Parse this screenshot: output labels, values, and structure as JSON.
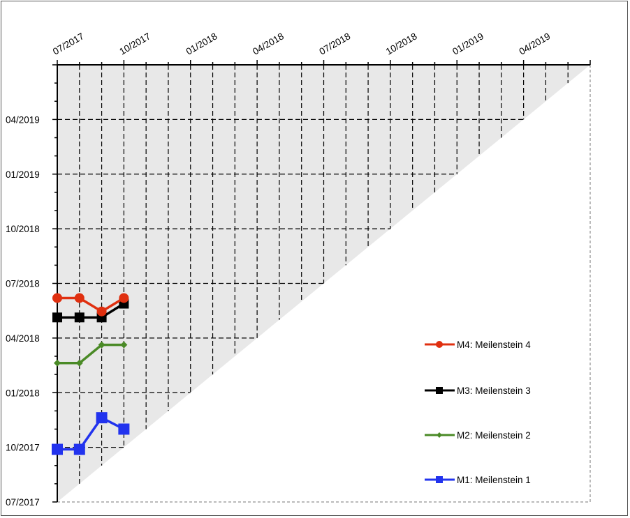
{
  "chart_data": {
    "type": "line",
    "title": "",
    "x_axis": {
      "ticks": [
        "07/2017",
        "10/2017",
        "01/2018",
        "04/2018",
        "07/2018",
        "10/2018",
        "01/2019",
        "04/2019"
      ],
      "range": [
        "2017-07",
        "2019-07"
      ],
      "position": "top"
    },
    "y_axis": {
      "ticks": [
        "07/2017",
        "10/2017",
        "01/2018",
        "04/2018",
        "07/2018",
        "10/2018",
        "01/2019",
        "04/2019"
      ],
      "range": [
        "2017-07",
        "2019-07"
      ]
    },
    "grid": true,
    "legend_position": "right",
    "series": [
      {
        "name": "M4: Meilenstein 4",
        "color": "#e03010",
        "marker": "circle",
        "points": [
          {
            "x": "2017-07",
            "y": "2018-06-07"
          },
          {
            "x": "2017-08",
            "y": "2018-06-07"
          },
          {
            "x": "2017-09",
            "y": "2018-05-15"
          },
          {
            "x": "2017-10",
            "y": "2018-06-07"
          }
        ]
      },
      {
        "name": "M3: Meilenstein 3",
        "color": "#000000",
        "marker": "square",
        "points": [
          {
            "x": "2017-07",
            "y": "2018-05-05"
          },
          {
            "x": "2017-08",
            "y": "2018-05-05"
          },
          {
            "x": "2017-09",
            "y": "2018-05-05"
          },
          {
            "x": "2017-10",
            "y": "2018-05-28"
          }
        ]
      },
      {
        "name": "M2: Meilenstein 2",
        "color": "#4a8a26",
        "marker": "diamond",
        "points": [
          {
            "x": "2017-07",
            "y": "2018-02-20"
          },
          {
            "x": "2017-08",
            "y": "2018-02-20"
          },
          {
            "x": "2017-09",
            "y": "2018-03-20"
          },
          {
            "x": "2017-10",
            "y": "2018-03-20"
          }
        ]
      },
      {
        "name": "M1: Meilenstein 1",
        "color": "#2233ee",
        "marker": "square",
        "points": [
          {
            "x": "2017-07",
            "y": "2017-09-28"
          },
          {
            "x": "2017-08",
            "y": "2017-09-28"
          },
          {
            "x": "2017-09",
            "y": "2017-11-20"
          },
          {
            "x": "2017-10",
            "y": "2017-11-01"
          }
        ]
      }
    ]
  }
}
